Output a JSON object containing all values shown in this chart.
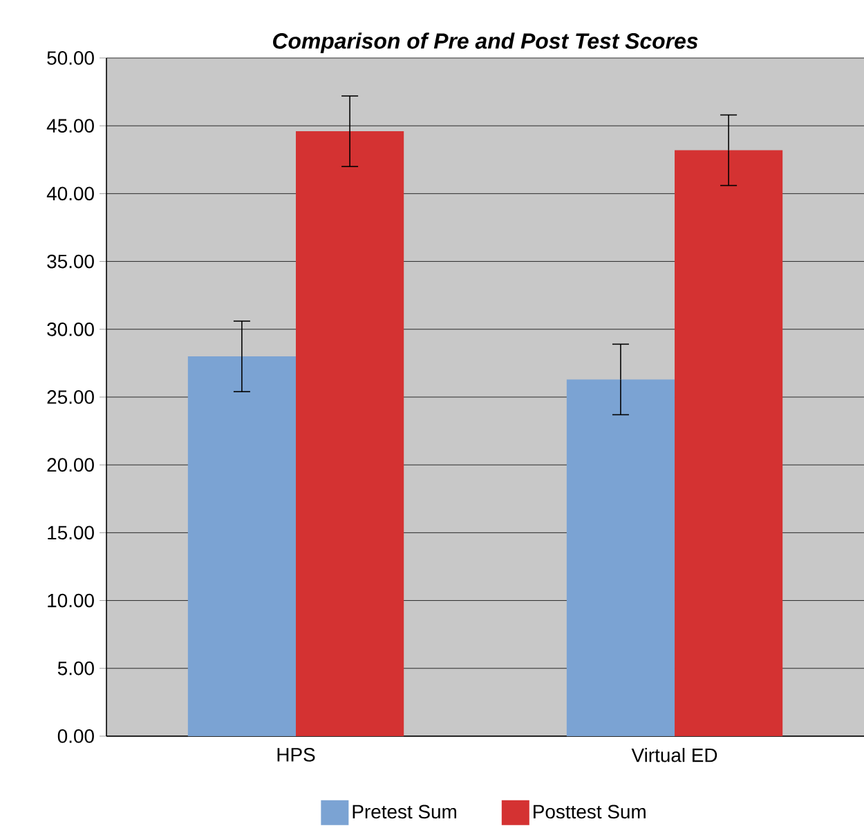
{
  "chart_data": {
    "type": "bar",
    "title": "Comparison of Pre and Post Test Scores",
    "categories": [
      "HPS",
      "Virtual ED"
    ],
    "series": [
      {
        "name": "Pretest Sum",
        "color": "#7ba3d3",
        "values": [
          28.0,
          26.3
        ],
        "errors": [
          2.6,
          2.6
        ]
      },
      {
        "name": "Posttest Sum",
        "color": "#d43232",
        "values": [
          44.6,
          43.2
        ],
        "errors": [
          2.6,
          2.6
        ]
      }
    ],
    "ylim": [
      0,
      50
    ],
    "yticks": [
      {
        "value": 0,
        "label": "0.00"
      },
      {
        "value": 5,
        "label": "5.00"
      },
      {
        "value": 10,
        "label": "10.00"
      },
      {
        "value": 15,
        "label": "15.00"
      },
      {
        "value": 20,
        "label": "20.00"
      },
      {
        "value": 25,
        "label": "25.00"
      },
      {
        "value": 30,
        "label": "30.00"
      },
      {
        "value": 35,
        "label": "35.00"
      },
      {
        "value": 40,
        "label": "40.00"
      },
      {
        "value": 45,
        "label": "45.00"
      },
      {
        "value": 50,
        "label": "50.00"
      }
    ],
    "grid": "y",
    "legend": "bottom"
  }
}
